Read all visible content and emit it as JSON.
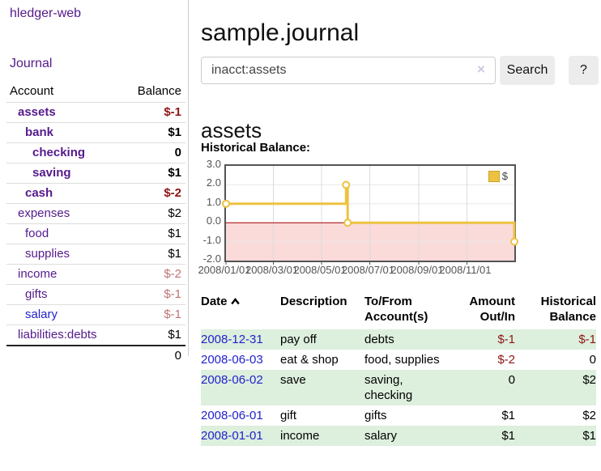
{
  "brand": "hledger-web",
  "sidebar": {
    "journal_link": "Journal",
    "account_header": "Account",
    "balance_header": "Balance",
    "accounts": [
      {
        "name": "assets",
        "balance": "$-1"
      },
      {
        "name": "bank",
        "balance": "$1"
      },
      {
        "name": "checking",
        "balance": "0"
      },
      {
        "name": "saving",
        "balance": "$1"
      },
      {
        "name": "cash",
        "balance": "$-2"
      },
      {
        "name": "expenses",
        "balance": "$2"
      },
      {
        "name": "food",
        "balance": "$1"
      },
      {
        "name": "supplies",
        "balance": "$1"
      },
      {
        "name": "income",
        "balance": "$-2"
      },
      {
        "name": "gifts",
        "balance": "$-1"
      },
      {
        "name": "salary",
        "balance": "$-1"
      },
      {
        "name": "liabilities:debts",
        "balance": "$1"
      }
    ],
    "total": "0"
  },
  "main": {
    "title": "sample.journal",
    "search": {
      "value": "inacct:assets",
      "clear": "×",
      "submit": "Search",
      "help": "?"
    },
    "account_title": "assets",
    "chart_heading": "Historical Balance:"
  },
  "chart_data": {
    "type": "line",
    "title": "Historical Balance",
    "style": "step-after with circle markers",
    "series": [
      {
        "name": "$",
        "color": "#edc240",
        "points": [
          {
            "date": "2008-01-01",
            "value": 1
          },
          {
            "date": "2008-06-01",
            "value": 2
          },
          {
            "date": "2008-06-03",
            "value": 0
          },
          {
            "date": "2008-12-31",
            "value": -1
          }
        ]
      }
    ],
    "x_range": [
      "2008-01-01",
      "2008-12-31"
    ],
    "y_range": [
      -2,
      3
    ],
    "x_ticks": [
      {
        "date": "2008-01-01",
        "label": "2008/01/01"
      },
      {
        "date": "2008-03-01",
        "label": "2008/03/01"
      },
      {
        "date": "2008-05-01",
        "label": "2008/05/01"
      },
      {
        "date": "2008-07-01",
        "label": "2008/07/01"
      },
      {
        "date": "2008-09-01",
        "label": "2008/09/01"
      },
      {
        "date": "2008-11-01",
        "label": "2008/11/01"
      }
    ],
    "y_ticks": [
      {
        "value": 3,
        "label": "3.0"
      },
      {
        "value": 2,
        "label": "2.0"
      },
      {
        "value": 1,
        "label": "1.0"
      },
      {
        "value": 0,
        "label": "0.0"
      },
      {
        "value": -1,
        "label": "-1.0"
      },
      {
        "value": -2,
        "label": "-2.0"
      }
    ],
    "legend": {
      "label": "$",
      "position": "top-right"
    },
    "grid": true,
    "negative_region_color": "#fbdada",
    "zero_line_color": "#a40000",
    "border_color": "#545454"
  },
  "register": {
    "headers": {
      "date": "Date",
      "description": "Description",
      "account": "To/From Account(s)",
      "amount": "Amount Out/In",
      "balance": "Historical Balance"
    },
    "rows": [
      {
        "date": "2008-12-31",
        "description": "pay off",
        "accounts": "debts",
        "amount": "$-1",
        "balance": "$-1"
      },
      {
        "date": "2008-06-03",
        "description": "eat & shop",
        "accounts": "food, supplies",
        "amount": "$-2",
        "balance": "0"
      },
      {
        "date": "2008-06-02",
        "description": "save",
        "accounts": "saving, checking",
        "amount": "0",
        "balance": "$2"
      },
      {
        "date": "2008-06-01",
        "description": "gift",
        "accounts": "gifts",
        "amount": "$1",
        "balance": "$2"
      },
      {
        "date": "2008-01-01",
        "description": "income",
        "accounts": "salary",
        "amount": "$1",
        "balance": "$1"
      }
    ]
  },
  "colors": {
    "link_visited_purple": "#551a8b",
    "link_blue": "#2222cc",
    "negative_strong": "#8e1515",
    "negative_faded": "#bd7575",
    "row_green": "#ddefdd",
    "button_gray": "#ececec",
    "chart_line_gold": "#edc240"
  }
}
